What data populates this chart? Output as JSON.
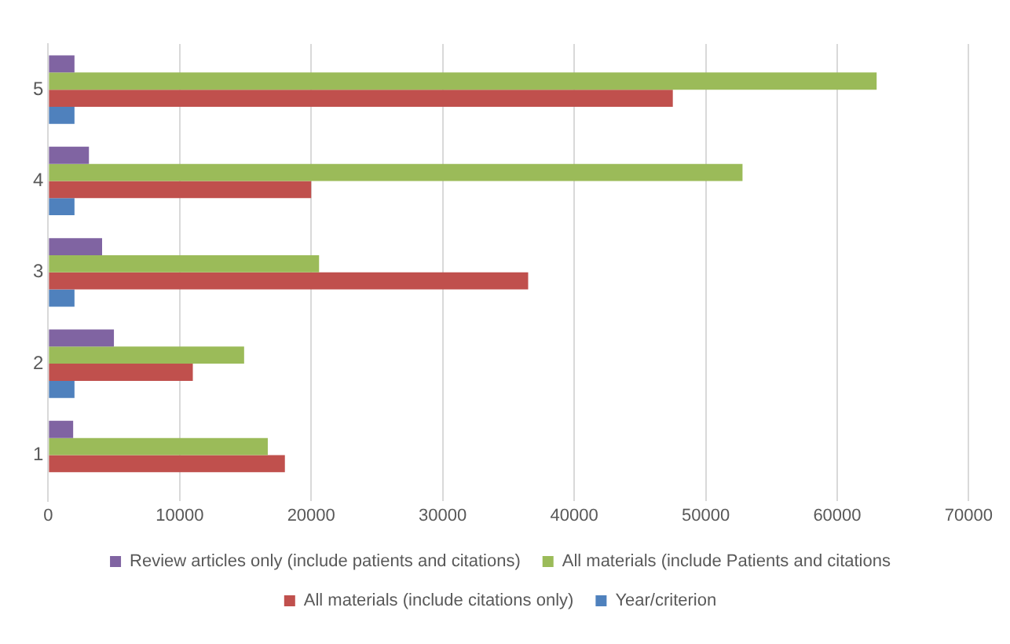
{
  "chart_data": {
    "type": "bar",
    "orientation": "horizontal",
    "categories": [
      "5",
      "4",
      "3",
      "2",
      "1"
    ],
    "series": [
      {
        "name": "Review articles only (include patients and citations)",
        "color": "#8064a2",
        "values": [
          2000,
          3100,
          4100,
          5000,
          1900
        ]
      },
      {
        "name": "All materials (include Patients and citations",
        "color": "#9bbb59",
        "values": [
          63000,
          52800,
          20600,
          14900,
          16700
        ]
      },
      {
        "name": "All materials (include citations only)",
        "color": "#c0504d",
        "values": [
          47500,
          20000,
          36500,
          11000,
          18000
        ]
      },
      {
        "name": "Year/criterion",
        "color": "#4f81bd",
        "values": [
          2000,
          2000,
          2000,
          2000,
          null
        ]
      }
    ],
    "xlim": [
      0,
      70000
    ],
    "xticks": [
      0,
      10000,
      20000,
      30000,
      40000,
      50000,
      60000,
      70000
    ],
    "grid": "x",
    "legend": "bottom"
  }
}
